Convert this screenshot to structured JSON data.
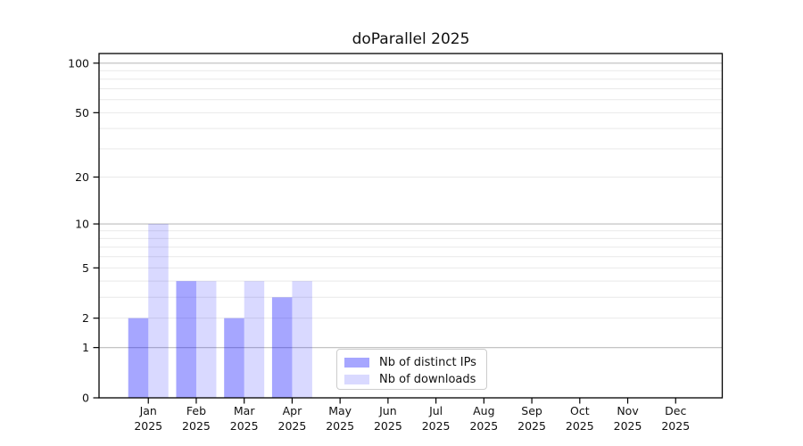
{
  "chart_data": {
    "type": "bar",
    "title": "doParallel 2025",
    "categories": [
      "Jan",
      "Feb",
      "Mar",
      "Apr",
      "May",
      "Jun",
      "Jul",
      "Aug",
      "Sep",
      "Oct",
      "Nov",
      "Dec"
    ],
    "category_year": "2025",
    "series": [
      {
        "name": "Nb of distinct IPs",
        "color": "#0000ff",
        "fill_opacity": 0.35,
        "displayed_color": "#a6a6ff",
        "values": [
          2,
          4,
          2,
          3,
          0,
          0,
          0,
          0,
          0,
          0,
          0,
          0
        ]
      },
      {
        "name": "Nb of downloads",
        "color": "#0000ff",
        "fill_opacity": 0.15,
        "displayed_color": "#d9d9ff",
        "values": [
          10,
          4,
          4,
          4,
          0,
          0,
          0,
          0,
          0,
          0,
          0,
          0
        ]
      }
    ],
    "yscale": "log1p",
    "ylim": [
      0,
      115
    ],
    "yticks": [
      100,
      50,
      20,
      10,
      5,
      2,
      1,
      0
    ],
    "ytick_labels": [
      "100",
      "50",
      "20",
      "10",
      "5",
      "2",
      "1",
      "0"
    ],
    "grid": {
      "major_lines": [
        1,
        10,
        100
      ],
      "minor_lines": [
        2,
        3,
        4,
        5,
        6,
        7,
        8,
        9,
        20,
        30,
        40,
        50,
        60,
        70,
        80,
        90
      ],
      "major_color": "#bdbdbd",
      "minor_color": "#e9e9e9"
    },
    "legend_position": "lower center",
    "spine_color": "#000000",
    "text_color": "#111111"
  }
}
